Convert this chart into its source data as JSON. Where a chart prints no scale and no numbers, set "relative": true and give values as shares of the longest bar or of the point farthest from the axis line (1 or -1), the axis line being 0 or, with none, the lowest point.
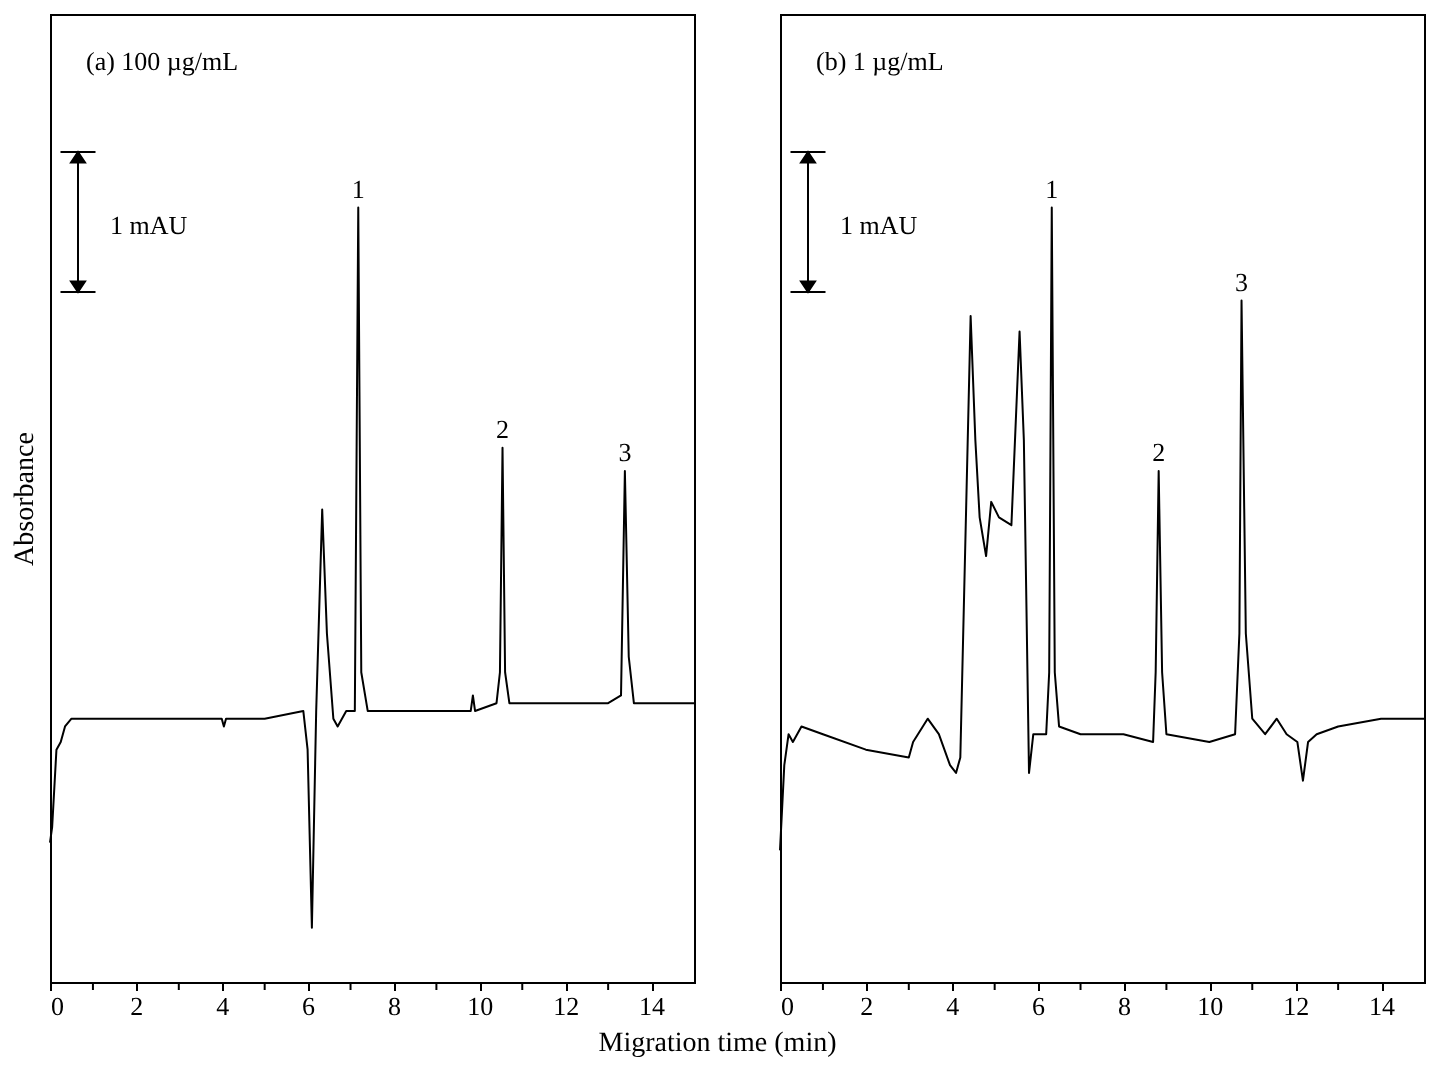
{
  "chart_data": [
    {
      "type": "line",
      "title": "(a) 100 µg/mL",
      "ylabel": "Absorbance",
      "xlabel": "Migration time (min)",
      "relative": true,
      "tick_labels": "x",
      "xlim": [
        0,
        15
      ],
      "xticks": [
        0,
        {
          "value": 1,
          "label": null
        },
        2,
        {
          "value": 3,
          "label": null
        },
        4,
        {
          "value": 5,
          "label": null
        },
        6,
        {
          "value": 7,
          "label": null
        },
        8,
        {
          "value": 9,
          "label": null
        },
        10,
        {
          "value": 11,
          "label": null
        },
        12,
        {
          "value": 13,
          "label": null
        },
        14
      ],
      "series": [
        {
          "color": "#000000",
          "x": [
            0,
            0.05,
            0.15,
            0.25,
            0.35,
            0.5,
            1,
            2,
            3,
            4,
            4.05,
            4.1,
            5,
            5.9,
            6.0,
            6.1,
            6.2,
            6.34,
            6.45,
            6.6,
            6.7,
            6.9,
            7.1,
            7.18,
            7.25,
            7.4,
            8,
            9,
            9.8,
            9.85,
            9.9,
            10.4,
            10.48,
            10.54,
            10.6,
            10.7,
            11,
            12,
            13,
            13.3,
            13.39,
            13.48,
            13.6,
            14,
            14.7,
            15
          ],
          "values": [
            0.18,
            0.2,
            0.3,
            0.31,
            0.33,
            0.34,
            0.34,
            0.34,
            0.34,
            0.34,
            0.33,
            0.34,
            0.34,
            0.35,
            0.3,
            0.07,
            0.35,
            0.61,
            0.45,
            0.34,
            0.33,
            0.35,
            0.35,
            1.0,
            0.4,
            0.35,
            0.35,
            0.35,
            0.35,
            0.37,
            0.35,
            0.36,
            0.4,
            0.69,
            0.4,
            0.36,
            0.36,
            0.36,
            0.36,
            0.37,
            0.66,
            0.42,
            0.36,
            0.36,
            0.36,
            0.36
          ]
        }
      ],
      "annotations": [
        "1 mAU",
        {
          "text": "1",
          "x": 7.18,
          "y": 1.0
        },
        {
          "text": "2",
          "x": 10.54,
          "y": 0.69
        },
        {
          "text": "3",
          "x": 13.39,
          "y": 0.66
        }
      ]
    },
    {
      "type": "line",
      "title": "(b) 1 µg/mL",
      "relative": true,
      "tick_labels": "x",
      "xlim": [
        0,
        15
      ],
      "xticks": [
        0,
        {
          "value": 1,
          "label": null
        },
        2,
        {
          "value": 3,
          "label": null
        },
        4,
        {
          "value": 5,
          "label": null
        },
        6,
        {
          "value": 7,
          "label": null
        },
        8,
        {
          "value": 9,
          "label": null
        },
        10,
        {
          "value": 11,
          "label": null
        },
        12,
        {
          "value": 13,
          "label": null
        },
        14
      ],
      "series": [
        {
          "color": "#000000",
          "x": [
            0,
            0.1,
            0.2,
            0.3,
            0.5,
            1,
            2,
            3,
            3.1,
            3.44,
            3.7,
            3.96,
            4.1,
            4.2,
            4.44,
            4.55,
            4.65,
            4.8,
            4.92,
            5.1,
            5.39,
            5.58,
            5.68,
            5.8,
            5.9,
            6.2,
            6.27,
            6.33,
            6.4,
            6.5,
            7,
            8,
            8.69,
            8.75,
            8.82,
            8.9,
            9.0,
            10,
            10.6,
            10.7,
            10.75,
            10.85,
            11,
            11.3,
            11.57,
            11.8,
            12.05,
            12.18,
            12.3,
            12.5,
            13,
            14,
            15
          ],
          "values": [
            0.17,
            0.28,
            0.32,
            0.31,
            0.33,
            0.32,
            0.3,
            0.29,
            0.31,
            0.34,
            0.32,
            0.28,
            0.27,
            0.29,
            0.86,
            0.7,
            0.6,
            0.55,
            0.62,
            0.6,
            0.59,
            0.84,
            0.7,
            0.27,
            0.32,
            0.32,
            0.4,
            1.0,
            0.4,
            0.33,
            0.32,
            0.32,
            0.31,
            0.4,
            0.66,
            0.4,
            0.32,
            0.31,
            0.32,
            0.45,
            0.88,
            0.45,
            0.34,
            0.32,
            0.34,
            0.32,
            0.31,
            0.26,
            0.31,
            0.32,
            0.33,
            0.34,
            0.34
          ]
        }
      ],
      "annotations": [
        "1 mAU",
        {
          "text": "1",
          "x": 6.33,
          "y": 1.0
        },
        {
          "text": "2",
          "x": 8.82,
          "y": 0.66
        },
        {
          "text": "3",
          "x": 10.75,
          "y": 0.88
        }
      ]
    }
  ]
}
